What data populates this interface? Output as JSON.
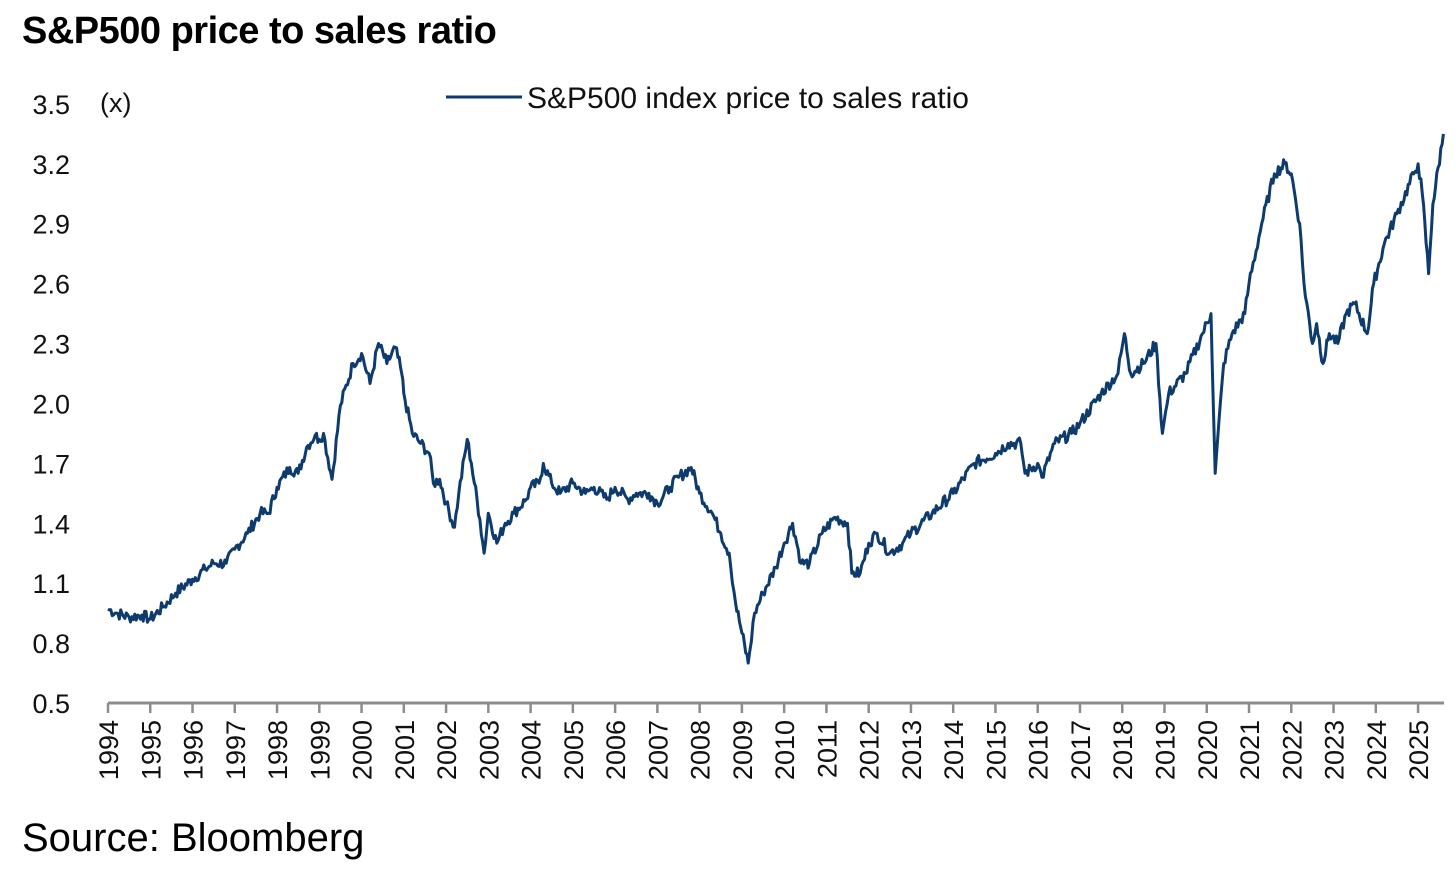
{
  "chart_data": {
    "type": "line",
    "title": "S&P500 price to sales ratio",
    "source": "Source: Bloomberg",
    "ylabel": "(x)",
    "xlabel": "",
    "ylim": [
      0.5,
      3.5
    ],
    "yticks": [
      "0.5",
      "0.8",
      "1.1",
      "1.4",
      "1.7",
      "2.0",
      "2.3",
      "2.6",
      "2.9",
      "3.2",
      "3.5"
    ],
    "xlim": [
      1994,
      2025.6
    ],
    "xticks": [
      "1994",
      "1995",
      "1996",
      "1997",
      "1998",
      "1999",
      "2000",
      "2001",
      "2002",
      "2003",
      "2004",
      "2005",
      "2006",
      "2007",
      "2008",
      "2009",
      "2010",
      "2011",
      "2012",
      "2013",
      "2014",
      "2015",
      "2016",
      "2017",
      "2018",
      "2019",
      "2020",
      "2021",
      "2022",
      "2023",
      "2024",
      "2025"
    ],
    "grid": false,
    "legend_position": "top-center",
    "series": [
      {
        "name": "S&P500 index price to sales ratio",
        "color": "#0d3b6e",
        "x": [
          1994.0,
          1994.2,
          1994.5,
          1994.8,
          1995.0,
          1995.3,
          1995.6,
          1996.0,
          1996.3,
          1996.5,
          1996.8,
          1997.0,
          1997.3,
          1997.6,
          1997.8,
          1998.0,
          1998.3,
          1998.5,
          1998.7,
          1998.9,
          1999.0,
          1999.1,
          1999.3,
          1999.5,
          1999.8,
          2000.0,
          2000.2,
          2000.4,
          2000.6,
          2000.8,
          2000.95,
          2001.0,
          2001.2,
          2001.4,
          2001.6,
          2001.7,
          2001.85,
          2002.0,
          2002.2,
          2002.3,
          2002.5,
          2002.6,
          2002.8,
          2002.9,
          2003.0,
          2003.2,
          2003.4,
          2003.6,
          2003.9,
          2004.0,
          2004.2,
          2004.3,
          2004.5,
          2004.7,
          2005.0,
          2005.3,
          2005.5,
          2005.8,
          2006.0,
          2006.3,
          2006.5,
          2006.8,
          2007.0,
          2007.3,
          2007.5,
          2007.8,
          2008.0,
          2008.3,
          2008.5,
          2008.7,
          2008.85,
          2009.0,
          2009.15,
          2009.3,
          2009.5,
          2009.8,
          2010.0,
          2010.2,
          2010.4,
          2010.6,
          2010.9,
          2011.2,
          2011.5,
          2011.6,
          2011.8,
          2012.0,
          2012.2,
          2012.5,
          2012.8,
          2013.0,
          2013.5,
          2014.0,
          2014.5,
          2015.0,
          2015.3,
          2015.6,
          2015.7,
          2016.0,
          2016.1,
          2016.4,
          2016.8,
          2017.0,
          2017.5,
          2017.9,
          2018.05,
          2018.2,
          2018.5,
          2018.8,
          2018.95,
          2019.1,
          2019.5,
          2019.9,
          2020.1,
          2020.2,
          2020.4,
          2020.6,
          2020.9,
          2021.0,
          2021.3,
          2021.6,
          2021.85,
          2022.0,
          2022.2,
          2022.3,
          2022.5,
          2022.6,
          2022.75,
          2022.9,
          2023.1,
          2023.3,
          2023.5,
          2023.8,
          2023.95,
          2024.2,
          2024.5,
          2024.9,
          2025.0,
          2025.1,
          2025.25,
          2025.35,
          2025.6
        ],
        "y": [
          0.97,
          0.95,
          0.93,
          0.94,
          0.92,
          0.98,
          1.05,
          1.12,
          1.17,
          1.2,
          1.2,
          1.27,
          1.35,
          1.45,
          1.45,
          1.58,
          1.68,
          1.65,
          1.78,
          1.84,
          1.82,
          1.85,
          1.62,
          1.99,
          2.2,
          2.25,
          2.1,
          2.3,
          2.2,
          2.28,
          2.15,
          2.05,
          1.85,
          1.8,
          1.75,
          1.6,
          1.62,
          1.5,
          1.38,
          1.55,
          1.82,
          1.7,
          1.42,
          1.25,
          1.45,
          1.3,
          1.4,
          1.45,
          1.52,
          1.58,
          1.6,
          1.7,
          1.6,
          1.55,
          1.6,
          1.55,
          1.58,
          1.52,
          1.58,
          1.52,
          1.55,
          1.55,
          1.5,
          1.58,
          1.63,
          1.68,
          1.55,
          1.45,
          1.35,
          1.25,
          1.0,
          0.85,
          0.7,
          0.95,
          1.05,
          1.18,
          1.3,
          1.4,
          1.2,
          1.2,
          1.35,
          1.43,
          1.4,
          1.15,
          1.15,
          1.3,
          1.35,
          1.25,
          1.3,
          1.35,
          1.45,
          1.55,
          1.7,
          1.75,
          1.8,
          1.8,
          1.65,
          1.7,
          1.63,
          1.8,
          1.85,
          1.9,
          2.05,
          2.15,
          2.35,
          2.15,
          2.2,
          2.3,
          1.85,
          2.05,
          2.15,
          2.35,
          2.45,
          1.65,
          2.2,
          2.35,
          2.45,
          2.6,
          2.9,
          3.15,
          3.2,
          3.15,
          2.9,
          2.6,
          2.3,
          2.4,
          2.2,
          2.35,
          2.3,
          2.45,
          2.5,
          2.35,
          2.6,
          2.8,
          2.95,
          3.15,
          3.2,
          3.05,
          2.65,
          3.0,
          3.35
        ]
      }
    ]
  }
}
